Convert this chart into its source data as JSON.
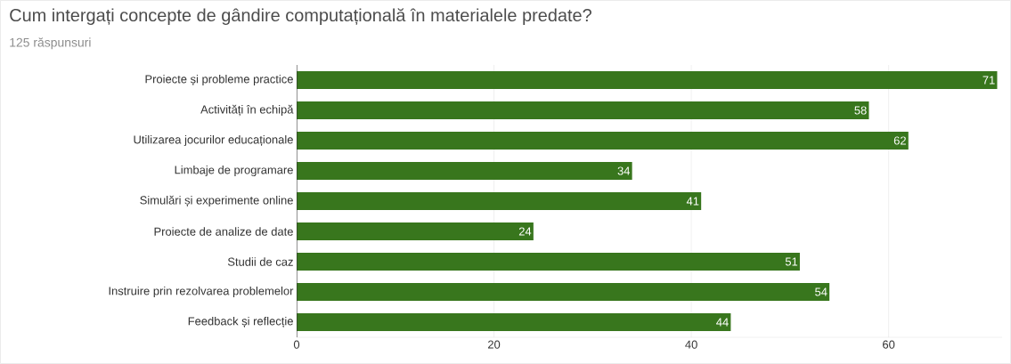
{
  "chart_data": {
    "type": "bar",
    "orientation": "horizontal",
    "title": "Cum intergați concepte de gândire computațională în materialele predate?",
    "subtitle": "125 răspunsuri",
    "categories": [
      "Proiecte și probleme practice",
      "Activități în echipă",
      "Utilizarea jocurilor educaționale",
      "Limbaje de programare",
      "Simulări și experimente online",
      "Proiecte de analize de date",
      "Studii de caz",
      "Instruire prin rezolvarea problemelor",
      "Feedback și reflecție"
    ],
    "values": [
      71,
      58,
      62,
      34,
      41,
      24,
      51,
      54,
      44
    ],
    "color": "#38761d",
    "xlim": [
      0,
      71.5
    ],
    "xticks": [
      0,
      20,
      40,
      60
    ],
    "grid": "x",
    "data_labels": true
  }
}
